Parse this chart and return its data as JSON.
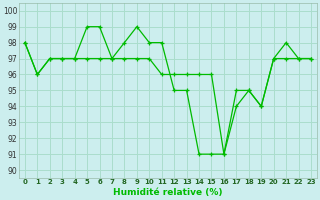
{
  "title": "",
  "xlabel": "Humidité relative (%)",
  "ylabel": "",
  "background_color": "#cceeee",
  "grid_color": "#aaddcc",
  "line_color": "#00bb00",
  "xlim": [
    -0.5,
    23.5
  ],
  "ylim": [
    89.5,
    100.5
  ],
  "yticks": [
    90,
    91,
    92,
    93,
    94,
    95,
    96,
    97,
    98,
    99,
    100
  ],
  "xticks": [
    0,
    1,
    2,
    3,
    4,
    5,
    6,
    7,
    8,
    9,
    10,
    11,
    12,
    13,
    14,
    15,
    16,
    17,
    18,
    19,
    20,
    21,
    22,
    23
  ],
  "line1_x": [
    0,
    1,
    2,
    3,
    4,
    5,
    6,
    7,
    8,
    9,
    10,
    11,
    12,
    13,
    14,
    15,
    16,
    17,
    18,
    19,
    20,
    21,
    22,
    23
  ],
  "line1_y": [
    98,
    96,
    97,
    97,
    97,
    99,
    99,
    97,
    98,
    99,
    98,
    98,
    95,
    95,
    91,
    91,
    91,
    95,
    95,
    94,
    97,
    98,
    97,
    97
  ],
  "line2_x": [
    0,
    1,
    2,
    3,
    4,
    5,
    6,
    7,
    8,
    9,
    10,
    11,
    12,
    13,
    14,
    15,
    16,
    17,
    18,
    19,
    20,
    21,
    22,
    23
  ],
  "line2_y": [
    98,
    96,
    97,
    97,
    97,
    97,
    97,
    97,
    97,
    97,
    97,
    96,
    96,
    96,
    96,
    96,
    91,
    94,
    95,
    94,
    97,
    97,
    97,
    97
  ]
}
